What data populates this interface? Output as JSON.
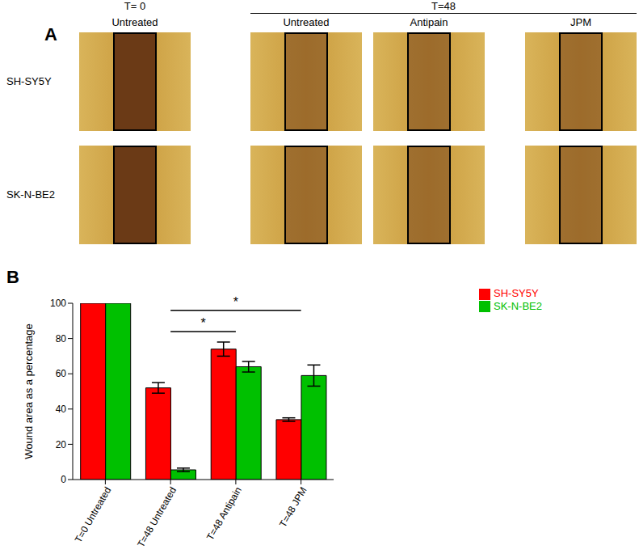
{
  "panel_a": {
    "label": "A",
    "group_headers": [
      {
        "text": "T= 0",
        "columns": [
          0
        ]
      },
      {
        "text": "T=48",
        "columns": [
          1,
          2,
          3
        ]
      }
    ],
    "column_labels": [
      "Untreated",
      "Untreated",
      "Antipain",
      "JPM"
    ],
    "row_labels": [
      "SH-SY5Y",
      "SK-N-BE2"
    ]
  },
  "panel_b": {
    "label": "B"
  },
  "chart_data": {
    "type": "bar",
    "y_label": "Wound area as a percentage",
    "categories": [
      "T=0 Untreated",
      "T=48 Untreated",
      "T=48 Antipain",
      "T=48 JPM"
    ],
    "series": [
      {
        "name": "SH-SY5Y",
        "color": "#ff0000",
        "values": [
          100,
          52,
          74,
          34
        ],
        "errors": [
          null,
          3,
          4,
          1
        ]
      },
      {
        "name": "SK-N-BE2",
        "color": "#00c000",
        "values": [
          100,
          5.5,
          64,
          59
        ],
        "errors": [
          null,
          1,
          3,
          6
        ]
      }
    ],
    "ylim": [
      0,
      100
    ],
    "yticks": [
      0,
      20,
      40,
      60,
      80,
      100
    ],
    "grid": false,
    "legend": "right",
    "annotations": [
      {
        "text": "*",
        "from": "T=48 Untreated",
        "to": "T=48 Antipain",
        "y": 84
      },
      {
        "text": "*",
        "from": "T=48 Untreated",
        "to": "T=48 JPM",
        "y": 96
      }
    ]
  }
}
